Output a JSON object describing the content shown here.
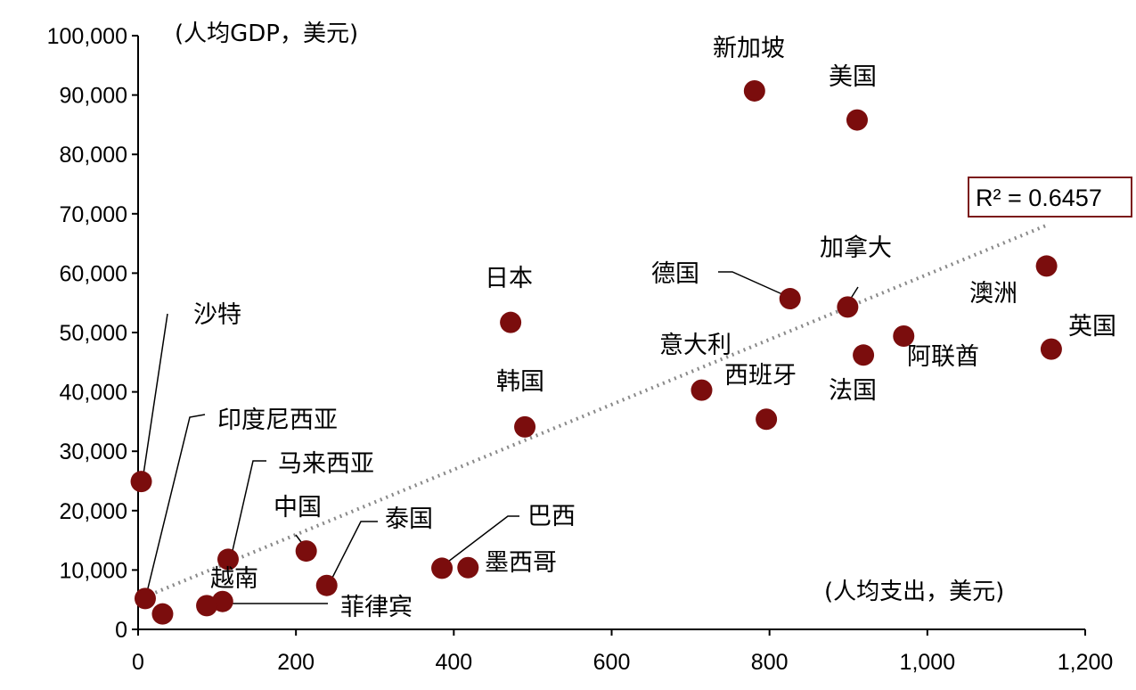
{
  "chart_data": {
    "type": "scatter",
    "ylabel": "(人均GDP，美元)",
    "xlabel": "(人均支出，美元)",
    "xlim": [
      0,
      1200
    ],
    "ylim": [
      0,
      100000
    ],
    "x_ticks": [
      0,
      200,
      400,
      600,
      800,
      1000,
      1200
    ],
    "x_tick_labels": [
      "0",
      "200",
      "400",
      "600",
      "800",
      "1,000",
      "1,200"
    ],
    "y_ticks": [
      0,
      10000,
      20000,
      30000,
      40000,
      50000,
      60000,
      70000,
      80000,
      90000,
      100000
    ],
    "y_tick_labels": [
      "0",
      "10,000",
      "20,000",
      "30,000",
      "40,000",
      "50,000",
      "60,000",
      "70,000",
      "80,000",
      "90,000",
      "100,000"
    ],
    "trendline": {
      "style": "dotted",
      "x": [
        0,
        1150
      ],
      "y": [
        5000,
        68000
      ],
      "r2_label": "R² = 0.6457"
    },
    "points": [
      {
        "name": "新加坡",
        "x": 781,
        "y": 90700
      },
      {
        "name": "美国",
        "x": 911,
        "y": 85800
      },
      {
        "name": "加拿大",
        "x": 899,
        "y": 54300
      },
      {
        "name": "德国",
        "x": 826,
        "y": 55700
      },
      {
        "name": "澳洲",
        "x": 1151,
        "y": 61200
      },
      {
        "name": "英国",
        "x": 1157,
        "y": 47200
      },
      {
        "name": "阿联酋",
        "x": 970,
        "y": 49400
      },
      {
        "name": "法国",
        "x": 919,
        "y": 46200
      },
      {
        "name": "意大利",
        "x": 714,
        "y": 40300
      },
      {
        "name": "西班牙",
        "x": 796,
        "y": 35400
      },
      {
        "name": "日本",
        "x": 472,
        "y": 51700
      },
      {
        "name": "韩国",
        "x": 490,
        "y": 34100
      },
      {
        "name": "沙特",
        "x": 4,
        "y": 24900
      },
      {
        "name": "印度尼西亚",
        "x": 9,
        "y": 5200
      },
      {
        "name": "马来西亚",
        "x": 114,
        "y": 11800
      },
      {
        "name": "中国",
        "x": 213,
        "y": 13200
      },
      {
        "name": "泰国",
        "x": 239,
        "y": 7400
      },
      {
        "name": "巴西",
        "x": 385,
        "y": 10300
      },
      {
        "name": "墨西哥",
        "x": 418,
        "y": 10400
      },
      {
        "name": "越南",
        "x": 107,
        "y": 4700
      },
      {
        "name": "菲律宾",
        "x": 87,
        "y": 4000
      },
      {
        "name": "unlabeled",
        "x": 31,
        "y": 2600
      }
    ]
  }
}
